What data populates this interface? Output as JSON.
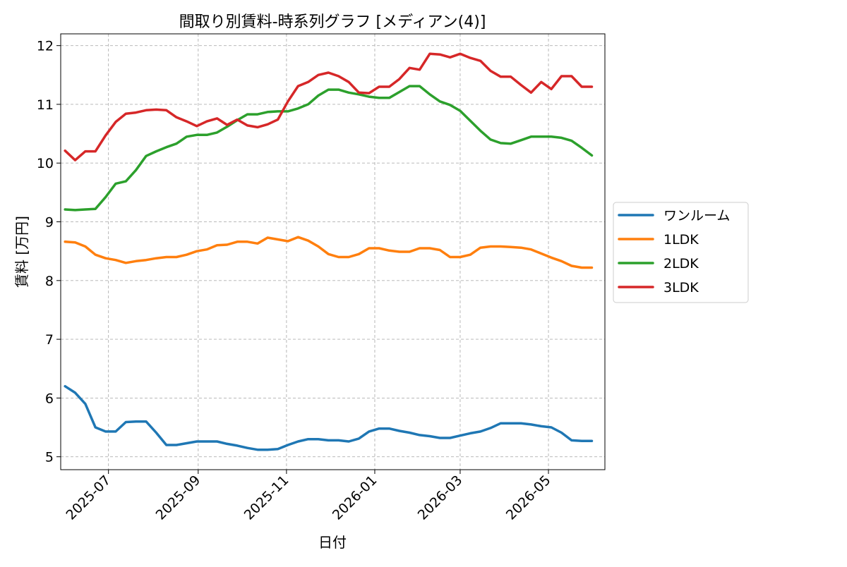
{
  "chart_data": {
    "type": "line",
    "title": "間取り別賃料-時系列グラフ [メディアン(4)]",
    "xlabel": "日付",
    "ylabel": "賃料 [万円]",
    "ylim": [
      4.78,
      12.2
    ],
    "yticks": [
      "5",
      "6",
      "7",
      "8",
      "9",
      "10",
      "11",
      "12"
    ],
    "xticks": [
      "2025-07",
      "2025-09",
      "2025-11",
      "2026-01",
      "2026-03",
      "2026-05"
    ],
    "xlim": [
      "2025-05-29",
      "2026-06-09"
    ],
    "grid": true,
    "legend_position": "right",
    "x": [
      "2025-06-01",
      "2025-06-08",
      "2025-06-15",
      "2025-06-22",
      "2025-06-29",
      "2025-07-06",
      "2025-07-13",
      "2025-07-20",
      "2025-07-27",
      "2025-08-03",
      "2025-08-10",
      "2025-08-17",
      "2025-08-24",
      "2025-08-31",
      "2025-09-07",
      "2025-09-14",
      "2025-09-21",
      "2025-09-28",
      "2025-10-05",
      "2025-10-12",
      "2025-10-19",
      "2025-10-26",
      "2025-11-02",
      "2025-11-09",
      "2025-11-16",
      "2025-11-23",
      "2025-11-30",
      "2025-12-07",
      "2025-12-14",
      "2025-12-21",
      "2025-12-28",
      "2026-01-04",
      "2026-01-11",
      "2026-01-18",
      "2026-01-25",
      "2026-02-01",
      "2026-02-08",
      "2026-02-15",
      "2026-02-22",
      "2026-03-01",
      "2026-03-08",
      "2026-03-15",
      "2026-03-22",
      "2026-03-29",
      "2026-04-05",
      "2026-04-12",
      "2026-04-19",
      "2026-04-26",
      "2026-05-03",
      "2026-05-10",
      "2026-05-17",
      "2026-05-24",
      "2026-05-31"
    ],
    "series": [
      {
        "name": "ワンルーム",
        "color": "#1f77b4",
        "values": [
          6.2,
          6.09,
          5.9,
          5.5,
          5.43,
          5.43,
          5.59,
          5.6,
          5.6,
          5.41,
          5.2,
          5.2,
          5.23,
          5.26,
          5.26,
          5.26,
          5.22,
          5.19,
          5.15,
          5.12,
          5.12,
          5.13,
          5.2,
          5.26,
          5.3,
          5.3,
          5.28,
          5.28,
          5.26,
          5.31,
          5.43,
          5.48,
          5.48,
          5.44,
          5.41,
          5.37,
          5.35,
          5.32,
          5.32,
          5.36,
          5.4,
          5.43,
          5.49,
          5.57,
          5.57,
          5.57,
          5.55,
          5.52,
          5.5,
          5.41,
          5.28,
          5.27,
          5.27
        ]
      },
      {
        "name": "1LDK",
        "color": "#ff7f0e",
        "values": [
          8.66,
          8.65,
          8.58,
          8.44,
          8.38,
          8.35,
          8.3,
          8.33,
          8.35,
          8.38,
          8.4,
          8.4,
          8.44,
          8.5,
          8.53,
          8.6,
          8.61,
          8.66,
          8.66,
          8.63,
          8.73,
          8.7,
          8.67,
          8.74,
          8.68,
          8.58,
          8.45,
          8.4,
          8.4,
          8.45,
          8.55,
          8.55,
          8.51,
          8.49,
          8.49,
          8.55,
          8.55,
          8.52,
          8.4,
          8.4,
          8.44,
          8.56,
          8.58,
          8.58,
          8.57,
          8.56,
          8.53,
          8.46,
          8.39,
          8.33,
          8.25,
          8.22,
          8.22
        ]
      },
      {
        "name": "2LDK",
        "color": "#2ca02c",
        "values": [
          9.21,
          9.2,
          9.21,
          9.22,
          9.42,
          9.65,
          9.69,
          9.88,
          10.12,
          10.2,
          10.27,
          10.33,
          10.45,
          10.48,
          10.48,
          10.52,
          10.62,
          10.73,
          10.83,
          10.83,
          10.87,
          10.88,
          10.88,
          10.93,
          11.0,
          11.15,
          11.25,
          11.25,
          11.2,
          11.17,
          11.13,
          11.11,
          11.11,
          11.21,
          11.31,
          11.31,
          11.17,
          11.05,
          10.99,
          10.89,
          10.72,
          10.55,
          10.4,
          10.34,
          10.33,
          10.39,
          10.45,
          10.45,
          10.45,
          10.43,
          10.38,
          10.26,
          10.13
        ]
      },
      {
        "name": "3LDK",
        "color": "#d62728",
        "values": [
          10.21,
          10.05,
          10.2,
          10.2,
          10.47,
          10.7,
          10.84,
          10.86,
          10.9,
          10.91,
          10.9,
          10.78,
          10.71,
          10.63,
          10.71,
          10.76,
          10.65,
          10.74,
          10.64,
          10.61,
          10.66,
          10.74,
          11.05,
          11.31,
          11.38,
          11.5,
          11.54,
          11.48,
          11.38,
          11.2,
          11.19,
          11.3,
          11.3,
          11.43,
          11.62,
          11.59,
          11.86,
          11.85,
          11.8,
          11.86,
          11.79,
          11.74,
          11.57,
          11.47,
          11.47,
          11.33,
          11.2,
          11.38,
          11.26,
          11.48,
          11.48,
          11.3,
          11.3
        ]
      }
    ]
  }
}
